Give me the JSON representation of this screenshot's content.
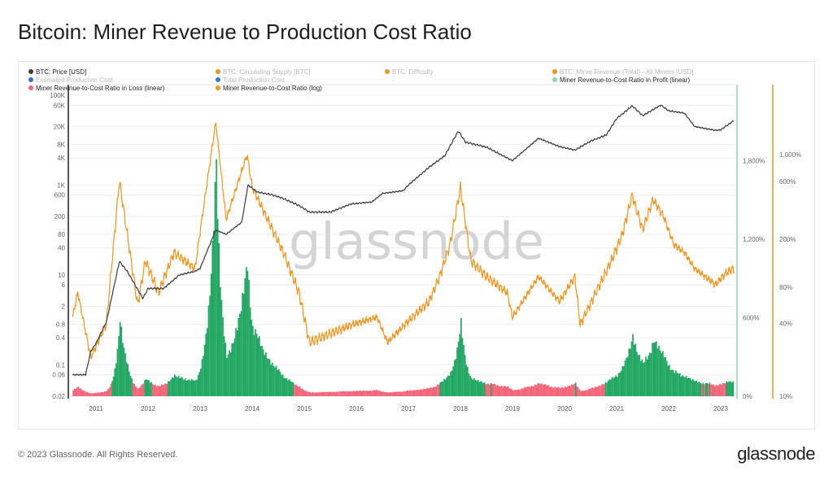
{
  "title": "Bitcoin: Miner Revenue to Production Cost Ratio",
  "footer": {
    "copyright": "© 2023 Glassnode. All Rights Reserved.",
    "logo": "glassnode"
  },
  "watermark": "glassnode",
  "chart_data": {
    "type": "line",
    "title": "Bitcoin: Miner Revenue to Production Cost Ratio",
    "legend": [
      {
        "label": "BTC: Price [USD]",
        "color": "#3b3b3b",
        "active": true
      },
      {
        "label": "BTC: Circulating Supply [BTC]",
        "color": "#f7931a",
        "active": false
      },
      {
        "label": "BTC: Difficulty",
        "color": "#f7931a",
        "active": false
      },
      {
        "label": "BTC: Miner Revenue (Total) - All Miners [USD]",
        "color": "#f7931a",
        "active": false
      },
      {
        "label": "Estimated Production Cost",
        "color": "#2f6fe0",
        "active": false
      },
      {
        "label": "Total Production Cost",
        "color": "#2f7fd0",
        "active": false
      },
      {
        "label": "-",
        "color": "",
        "active": false
      },
      {
        "label": "Miner Revenue-to-Cost Ratio in Profit (linear)",
        "color": "#8fd5b0",
        "active": true
      },
      {
        "label": "Miner Revenue-to-Cost Ratio in Loss (linear)",
        "color": "#f4667a",
        "active": true
      },
      {
        "label": "Miner Revenue-to-Cost Ratio (log)",
        "color": "#f7931a",
        "active": true
      }
    ],
    "colors": {
      "price": "#3b3b3b",
      "ratio": "#f7931a",
      "profit": "#22a862",
      "loss": "#f4667a",
      "profit_axis": "#8fd5b0",
      "ratio_axis": "#f7931a"
    },
    "x_ticks": [
      "2011",
      "2012",
      "2013",
      "2014",
      "2015",
      "2016",
      "2017",
      "2018",
      "2019",
      "2020",
      "2021",
      "2022",
      "2023"
    ],
    "xlim": [
      2010.5,
      2023.3
    ],
    "price_axis": {
      "scale": "log",
      "ylim": [
        0.02,
        100000
      ],
      "ticks": [
        {
          "v": 100000,
          "l": "100K"
        },
        {
          "v": 60000,
          "l": "60K"
        },
        {
          "v": 20000,
          "l": "20K"
        },
        {
          "v": 8000,
          "l": "8K"
        },
        {
          "v": 4000,
          "l": "4K"
        },
        {
          "v": 1000,
          "l": "1K"
        },
        {
          "v": 600,
          "l": "600"
        },
        {
          "v": 200,
          "l": "200"
        },
        {
          "v": 80,
          "l": "80"
        },
        {
          "v": 40,
          "l": "40"
        },
        {
          "v": 10,
          "l": "10"
        },
        {
          "v": 6,
          "l": "6"
        },
        {
          "v": 2,
          "l": "2"
        },
        {
          "v": 0.8,
          "l": "0.8"
        },
        {
          "v": 0.4,
          "l": "0.4"
        },
        {
          "v": 0.1,
          "l": "0.1"
        },
        {
          "v": 0.06,
          "l": "0.06"
        },
        {
          "v": 0.02,
          "l": "0.02"
        }
      ]
    },
    "profit_axis": {
      "scale": "linear",
      "ylim": [
        0,
        2300
      ],
      "ticks": [
        {
          "v": 0,
          "l": "0%"
        },
        {
          "v": 600,
          "l": "600%"
        },
        {
          "v": 1200,
          "l": "1,200%"
        },
        {
          "v": 1800,
          "l": "1,800%"
        }
      ]
    },
    "ratio_axis": {
      "scale": "log",
      "ylim": [
        10,
        2400
      ],
      "ticks": [
        {
          "v": 10,
          "l": "10%"
        },
        {
          "v": 40,
          "l": "40%"
        },
        {
          "v": 80,
          "l": "80%"
        },
        {
          "v": 200,
          "l": "200%"
        },
        {
          "v": 600,
          "l": "600%"
        },
        {
          "v": 1000,
          "l": "1,000%"
        }
      ]
    },
    "series": [
      {
        "name": "BTC: Price [USD]",
        "points": [
          [
            2010.55,
            0.06
          ],
          [
            2010.8,
            0.06
          ],
          [
            2010.9,
            0.2
          ],
          [
            2011.0,
            0.3
          ],
          [
            2011.2,
            0.9
          ],
          [
            2011.45,
            20
          ],
          [
            2011.6,
            12
          ],
          [
            2011.9,
            3
          ],
          [
            2012.0,
            5
          ],
          [
            2012.3,
            5
          ],
          [
            2012.6,
            10
          ],
          [
            2012.9,
            12
          ],
          [
            2013.0,
            14
          ],
          [
            2013.3,
            100
          ],
          [
            2013.5,
            80
          ],
          [
            2013.8,
            150
          ],
          [
            2013.92,
            1000
          ],
          [
            2014.1,
            700
          ],
          [
            2014.4,
            600
          ],
          [
            2014.6,
            500
          ],
          [
            2014.9,
            350
          ],
          [
            2015.1,
            250
          ],
          [
            2015.5,
            250
          ],
          [
            2015.9,
            380
          ],
          [
            2016.3,
            420
          ],
          [
            2016.5,
            650
          ],
          [
            2016.9,
            750
          ],
          [
            2017.0,
            1000
          ],
          [
            2017.4,
            2500
          ],
          [
            2017.7,
            4500
          ],
          [
            2017.96,
            16000
          ],
          [
            2018.1,
            9000
          ],
          [
            2018.5,
            7000
          ],
          [
            2018.9,
            4000
          ],
          [
            2019.0,
            3500
          ],
          [
            2019.5,
            11000
          ],
          [
            2019.9,
            7200
          ],
          [
            2020.2,
            6000
          ],
          [
            2020.5,
            9500
          ],
          [
            2020.8,
            13000
          ],
          [
            2021.0,
            30000
          ],
          [
            2021.3,
            58000
          ],
          [
            2021.5,
            35000
          ],
          [
            2021.85,
            60000
          ],
          [
            2022.0,
            45000
          ],
          [
            2022.3,
            40000
          ],
          [
            2022.5,
            20000
          ],
          [
            2022.9,
            16500
          ],
          [
            2023.0,
            17000
          ],
          [
            2023.25,
            27000
          ]
        ]
      },
      {
        "name": "Miner Revenue-to-Cost Ratio (%)",
        "points": [
          [
            2010.55,
            45
          ],
          [
            2010.65,
            72
          ],
          [
            2010.9,
            21
          ],
          [
            2011.2,
            40
          ],
          [
            2011.45,
            610
          ],
          [
            2011.8,
            57
          ],
          [
            2011.95,
            133
          ],
          [
            2012.2,
            72
          ],
          [
            2012.5,
            155
          ],
          [
            2012.9,
            114
          ],
          [
            2013.3,
            1860
          ],
          [
            2013.5,
            290
          ],
          [
            2013.9,
            1000
          ],
          [
            2014.0,
            540
          ],
          [
            2014.3,
            290
          ],
          [
            2014.6,
            155
          ],
          [
            2014.9,
            72
          ],
          [
            2015.1,
            28
          ],
          [
            2015.5,
            33
          ],
          [
            2015.9,
            39
          ],
          [
            2016.4,
            45
          ],
          [
            2016.6,
            28
          ],
          [
            2017.0,
            42
          ],
          [
            2017.4,
            61
          ],
          [
            2017.6,
            98
          ],
          [
            2017.8,
            180
          ],
          [
            2018.0,
            537
          ],
          [
            2018.2,
            133
          ],
          [
            2018.5,
            98
          ],
          [
            2018.9,
            72
          ],
          [
            2019.0,
            45
          ],
          [
            2019.5,
            98
          ],
          [
            2019.9,
            61
          ],
          [
            2020.2,
            98
          ],
          [
            2020.3,
            39
          ],
          [
            2020.6,
            72
          ],
          [
            2020.9,
            133
          ],
          [
            2021.1,
            212
          ],
          [
            2021.3,
            460
          ],
          [
            2021.5,
            240
          ],
          [
            2021.7,
            425
          ],
          [
            2021.9,
            310
          ],
          [
            2022.1,
            180
          ],
          [
            2022.3,
            155
          ],
          [
            2022.5,
            114
          ],
          [
            2022.9,
            84
          ],
          [
            2023.1,
            105
          ],
          [
            2023.25,
            114
          ]
        ]
      }
    ]
  }
}
